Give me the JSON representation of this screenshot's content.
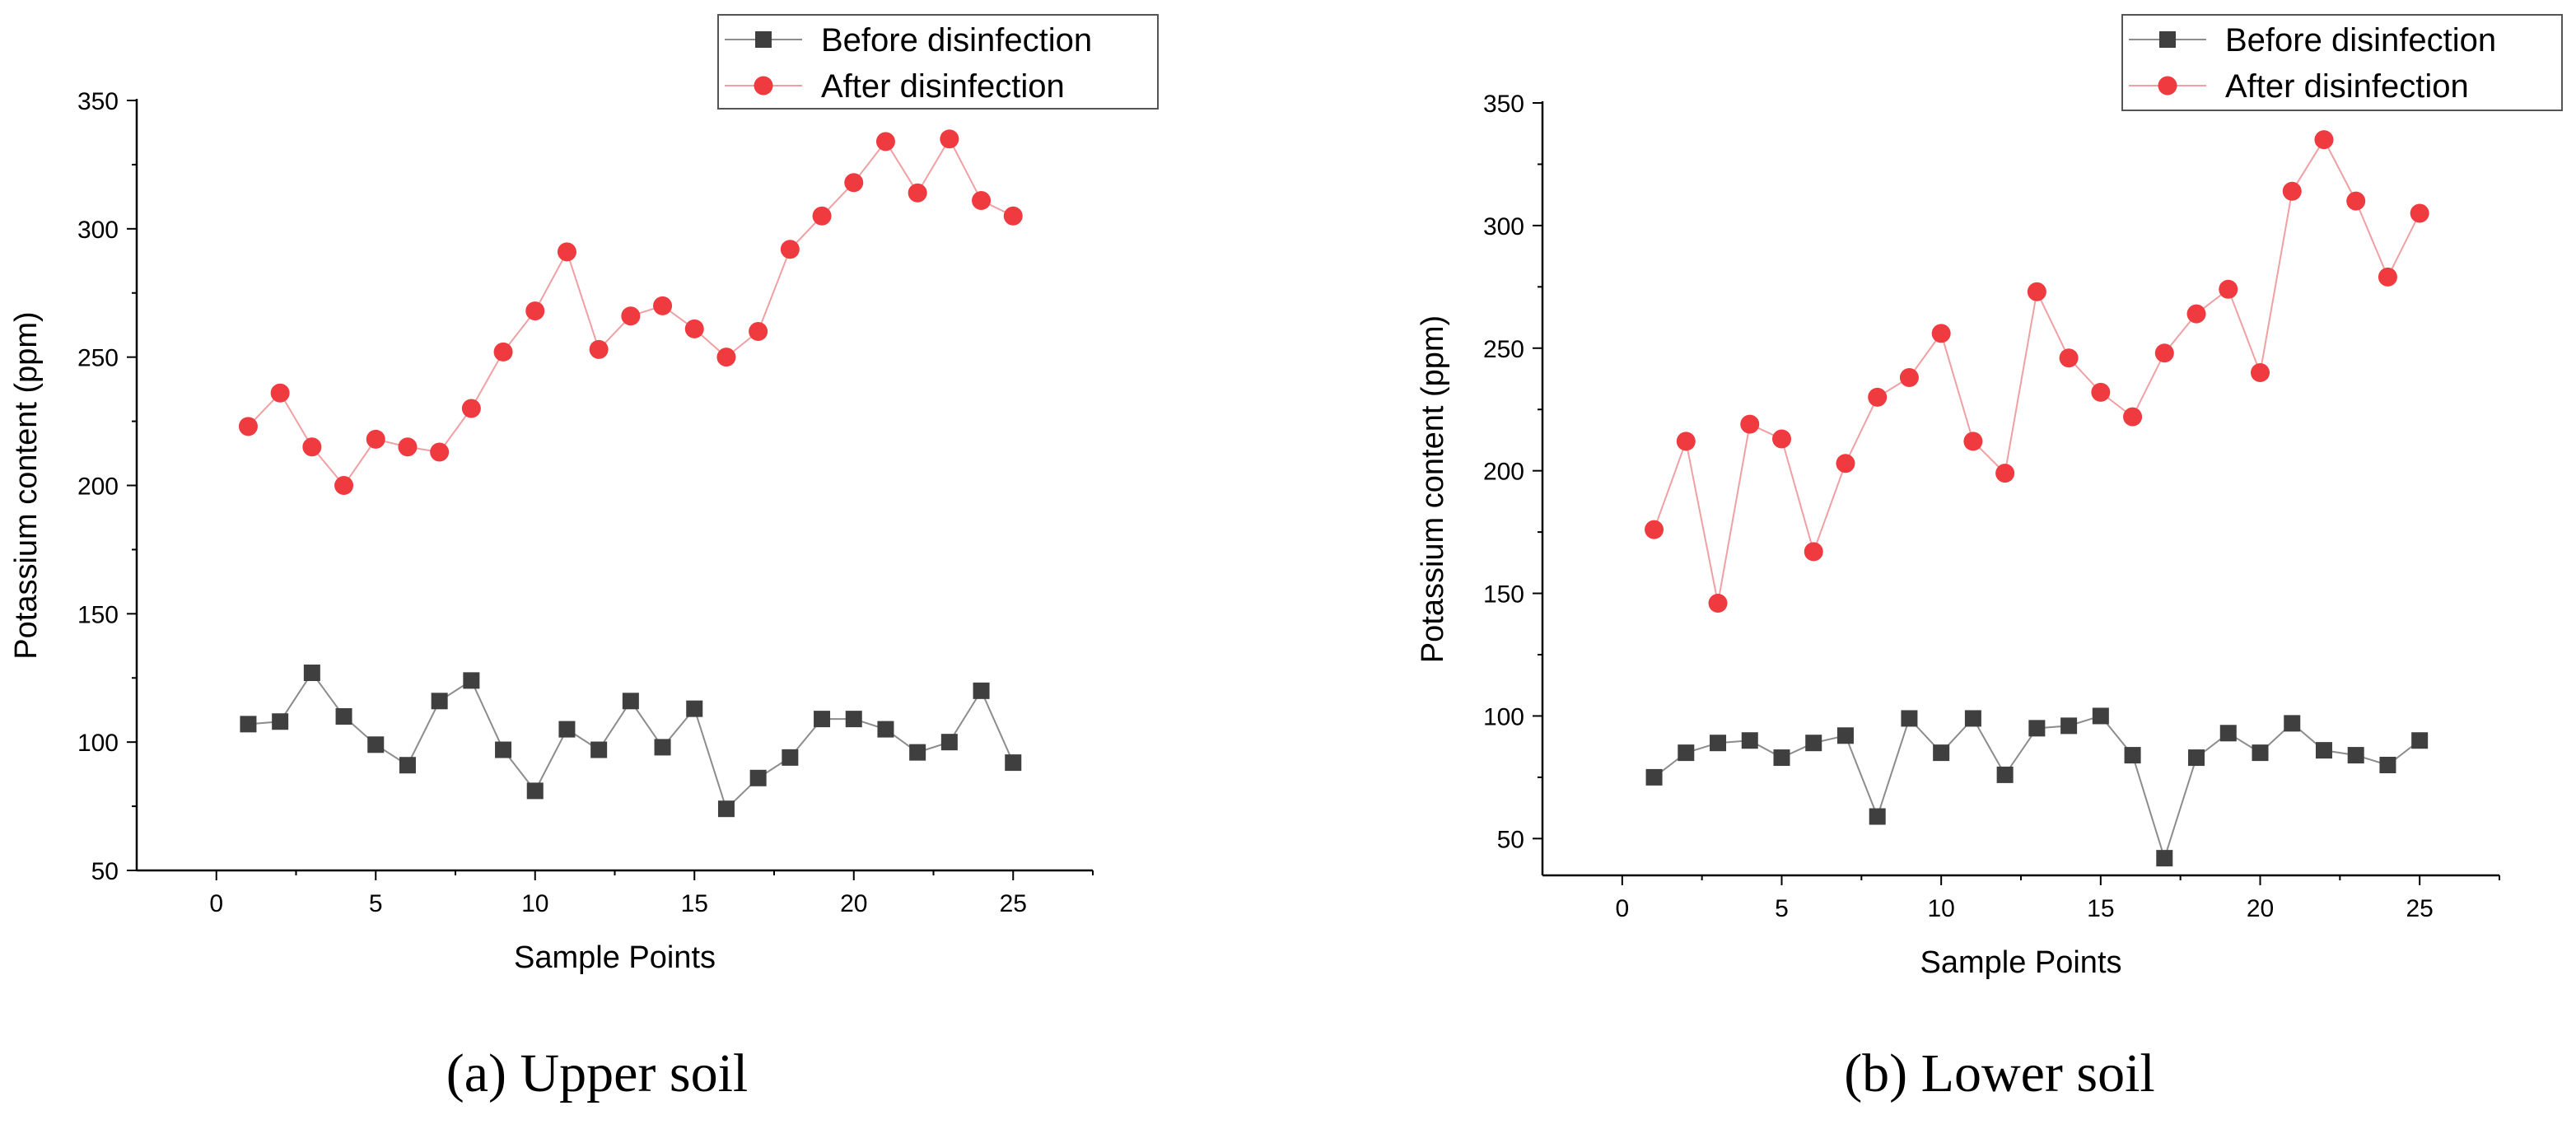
{
  "figure": {
    "captions": [
      "(a) Upper soil",
      "(b) Lower soil"
    ]
  },
  "colors": {
    "before_marker": "#3f3f3f",
    "before_line": "#8c8c8c",
    "after_marker": "#ef3a3f",
    "after_line": "#f0a0a3",
    "axis": "#000000"
  },
  "chart_data": [
    {
      "type": "line",
      "title": "",
      "caption": "(a) Upper soil",
      "xlabel": "Sample Points",
      "ylabel": "Potassium content   (ppm)",
      "xlim": [
        -2.5,
        27.5
      ],
      "ylim": [
        50,
        350
      ],
      "xticks": [
        0,
        5,
        10,
        15,
        20,
        25
      ],
      "yticks": [
        50,
        100,
        150,
        200,
        250,
        300,
        350
      ],
      "grid": false,
      "legend": "top-right",
      "x": [
        1,
        2,
        3,
        4,
        5,
        6,
        7,
        8,
        9,
        10,
        11,
        12,
        13,
        14,
        15,
        16,
        17,
        18,
        19,
        20,
        21,
        22,
        23,
        24,
        25
      ],
      "series": [
        {
          "name": "Before disinfection",
          "marker": "square",
          "values": [
            107,
            108,
            127,
            110,
            99,
            91,
            116,
            124,
            97,
            81,
            105,
            97,
            116,
            98,
            113,
            74,
            86,
            94,
            109,
            109,
            105,
            96,
            100,
            120,
            92
          ]
        },
        {
          "name": "After disinfection",
          "marker": "circle",
          "values": [
            223,
            236,
            215,
            200,
            218,
            215,
            213,
            230,
            252,
            268,
            291,
            253,
            266,
            270,
            261,
            250,
            260,
            292,
            305,
            318,
            334,
            314,
            335,
            311,
            305
          ]
        }
      ]
    },
    {
      "type": "line",
      "title": "",
      "caption": "(b) Lower soil",
      "xlabel": "Sample Points",
      "ylabel": "Potassium content   (ppm)",
      "xlim": [
        -2.5,
        27.5
      ],
      "ylim": [
        35,
        350
      ],
      "xticks": [
        0,
        5,
        10,
        15,
        20,
        25
      ],
      "yticks": [
        50,
        100,
        150,
        200,
        250,
        300,
        350
      ],
      "grid": false,
      "legend": "top-right",
      "x": [
        1,
        2,
        3,
        4,
        5,
        6,
        7,
        8,
        9,
        10,
        11,
        12,
        13,
        14,
        15,
        16,
        17,
        18,
        19,
        20,
        21,
        22,
        23,
        24,
        25
      ],
      "series": [
        {
          "name": "Before disinfection",
          "marker": "square",
          "values": [
            75,
            85,
            89,
            90,
            83,
            89,
            92,
            59,
            99,
            85,
            99,
            76,
            95,
            96,
            100,
            84,
            42,
            83,
            93,
            85,
            97,
            86,
            84,
            80,
            90
          ]
        },
        {
          "name": "After disinfection",
          "marker": "circle",
          "values": [
            176,
            212,
            146,
            219,
            213,
            167,
            203,
            230,
            238,
            256,
            212,
            199,
            273,
            246,
            232,
            222,
            248,
            264,
            274,
            240,
            314,
            335,
            310,
            279,
            305
          ]
        }
      ]
    }
  ]
}
